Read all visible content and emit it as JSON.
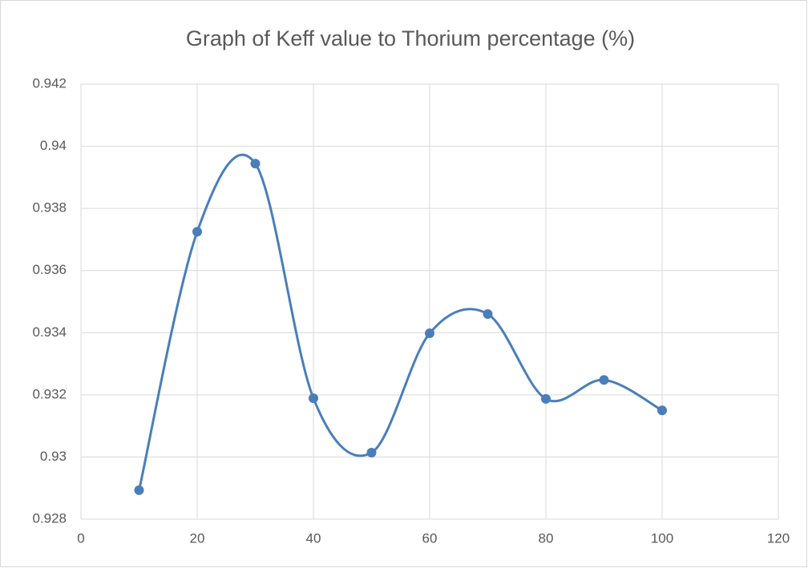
{
  "chart_data": {
    "type": "line",
    "title": "Graph of Keff value to Thorium percentage (%)",
    "x": [
      10,
      20,
      30,
      40,
      50,
      60,
      70,
      80,
      90,
      100
    ],
    "series": [
      {
        "color": "#4a7ebb",
        "values": [
          0.92893,
          0.93725,
          0.93944,
          0.93189,
          0.93014,
          0.93398,
          0.9346,
          0.93187,
          0.93248,
          0.9315
        ]
      }
    ],
    "xlim": [
      0,
      120
    ],
    "xticks": [
      0,
      20,
      40,
      60,
      80,
      100,
      120
    ],
    "ylim": [
      0.928,
      0.942
    ],
    "yticks": [
      0.928,
      0.93,
      0.932,
      0.934,
      0.936,
      0.938,
      0.94,
      0.942
    ],
    "grid": true,
    "smooth": true
  }
}
